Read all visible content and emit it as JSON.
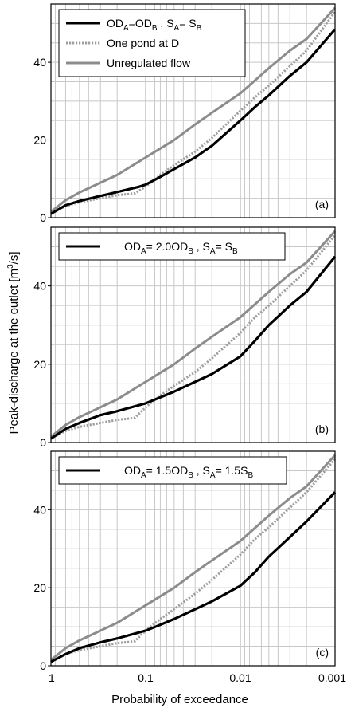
{
  "ylabel": "Peak-discharge at the outlet",
  "ylabel_unit_base": "[m",
  "ylabel_unit_exp": "3",
  "ylabel_unit_tail": "/s]",
  "xlabel": "Probability of exceedance",
  "colors": {
    "od_equal": "#000000",
    "one_pond": "#9e9e9e",
    "unregulated": "#8c8c8c",
    "grid": "#c8c8c8",
    "frame": "#000000"
  },
  "chart_data": [
    {
      "type": "line",
      "panel": "(a)",
      "xlabel": "",
      "ylabel": "",
      "x_scale": "log-reversed",
      "xlim": [
        1,
        0.001
      ],
      "ylim": [
        0,
        55
      ],
      "yticks": [
        "0",
        "20",
        "40"
      ],
      "grid": true,
      "legend_position": "top-left",
      "legend": [
        {
          "parts": [
            "OD",
            "A",
            "=OD",
            "B",
            " , S",
            "A",
            "= S",
            "B"
          ]
        },
        {
          "parts": [
            "One pond at D"
          ]
        },
        {
          "parts": [
            "Unregulated flow"
          ]
        }
      ],
      "series": [
        {
          "name": "OD_A=OD_B , S_A= S_B",
          "style": "solid-black",
          "x": [
            1,
            0.7,
            0.5,
            0.3,
            0.2,
            0.12,
            0.1,
            0.07,
            0.05,
            0.03,
            0.02,
            0.01,
            0.007,
            0.005,
            0.003,
            0.002,
            0.001
          ],
          "y": [
            1,
            3.2,
            4.3,
            5.6,
            6.6,
            7.9,
            8.5,
            10.5,
            12.5,
            15.5,
            18.5,
            25,
            28.5,
            31.5,
            36.5,
            40,
            48.5
          ]
        },
        {
          "name": "One pond at D",
          "style": "dotted-gray",
          "x": [
            1,
            0.7,
            0.5,
            0.3,
            0.2,
            0.15,
            0.13,
            0.1,
            0.07,
            0.05,
            0.03,
            0.02,
            0.01,
            0.007,
            0.005,
            0.003,
            0.002,
            0.001
          ],
          "y": [
            1,
            3,
            4,
            5,
            5.8,
            6.1,
            6.3,
            8,
            11,
            13.5,
            17,
            20.5,
            27.5,
            31,
            34,
            39,
            43,
            53
          ]
        },
        {
          "name": "Unregulated flow",
          "style": "solid-gray",
          "x": [
            1,
            0.7,
            0.5,
            0.3,
            0.2,
            0.1,
            0.05,
            0.03,
            0.02,
            0.01,
            0.005,
            0.003,
            0.002,
            0.001
          ],
          "y": [
            1.5,
            4.5,
            6.5,
            9,
            11,
            15.5,
            20,
            24,
            27,
            32,
            38.5,
            43,
            46,
            54
          ]
        }
      ]
    },
    {
      "type": "line",
      "panel": "(b)",
      "xlabel": "",
      "ylabel": "",
      "x_scale": "log-reversed",
      "xlim": [
        1,
        0.001
      ],
      "ylim": [
        0,
        55
      ],
      "yticks": [
        "0",
        "20",
        "40"
      ],
      "grid": true,
      "legend_position": "top-left",
      "legend": [
        {
          "parts": [
            "OD",
            "A",
            "= 2.0OD",
            "B",
            " , S",
            "A",
            "= S",
            "B"
          ]
        }
      ],
      "series": [
        {
          "name": "OD_A= 2.0OD_B , S_A= S_B",
          "style": "solid-black",
          "x": [
            1,
            0.7,
            0.5,
            0.3,
            0.2,
            0.1,
            0.05,
            0.03,
            0.02,
            0.01,
            0.007,
            0.005,
            0.003,
            0.002,
            0.001
          ],
          "y": [
            1,
            3.5,
            5,
            7,
            8,
            10,
            13,
            15.5,
            17.5,
            22,
            26,
            30,
            35,
            38.5,
            47.5
          ]
        },
        {
          "name": "One pond at D",
          "style": "dotted-gray",
          "x": [
            1,
            0.7,
            0.5,
            0.3,
            0.2,
            0.15,
            0.13,
            0.1,
            0.07,
            0.05,
            0.03,
            0.02,
            0.01,
            0.007,
            0.005,
            0.003,
            0.002,
            0.001
          ],
          "y": [
            1,
            3,
            4,
            5,
            5.8,
            6.1,
            6.3,
            9,
            12,
            14.5,
            18,
            21.5,
            28,
            32,
            35,
            40,
            44,
            53
          ]
        },
        {
          "name": "Unregulated flow",
          "style": "solid-gray",
          "x": [
            1,
            0.7,
            0.5,
            0.3,
            0.2,
            0.1,
            0.05,
            0.03,
            0.02,
            0.01,
            0.005,
            0.003,
            0.002,
            0.001
          ],
          "y": [
            1.5,
            4.5,
            6.5,
            9,
            11,
            15.5,
            20,
            24,
            27,
            32,
            38.5,
            43,
            46,
            54
          ]
        }
      ]
    },
    {
      "type": "line",
      "panel": "(c)",
      "xlabel": "",
      "ylabel": "",
      "x_scale": "log-reversed",
      "xlim": [
        1,
        0.001
      ],
      "ylim": [
        0,
        55
      ],
      "yticks": [
        "0",
        "20",
        "40"
      ],
      "xticks": [
        "1",
        "0.1",
        "0.01",
        "0.001"
      ],
      "grid": true,
      "legend_position": "top-left",
      "legend": [
        {
          "parts": [
            "OD",
            "A",
            "= 1.5OD",
            "B",
            " , S",
            "A",
            "= 1.5S",
            "B"
          ]
        }
      ],
      "series": [
        {
          "name": "OD_A= 1.5OD_B , S_A= 1.5S_B",
          "style": "solid-black",
          "x": [
            1,
            0.7,
            0.5,
            0.3,
            0.2,
            0.1,
            0.07,
            0.05,
            0.03,
            0.02,
            0.01,
            0.007,
            0.005,
            0.003,
            0.002,
            0.001
          ],
          "y": [
            1,
            3,
            4.5,
            6,
            7,
            9,
            10.5,
            12,
            14.5,
            16.5,
            20.5,
            24,
            28,
            33,
            37,
            44.5
          ]
        },
        {
          "name": "One pond at D",
          "style": "dotted-gray",
          "x": [
            1,
            0.7,
            0.5,
            0.3,
            0.2,
            0.15,
            0.13,
            0.1,
            0.07,
            0.05,
            0.03,
            0.02,
            0.01,
            0.007,
            0.005,
            0.003,
            0.002,
            0.001
          ],
          "y": [
            1,
            3,
            4,
            5,
            5.8,
            6.1,
            6.3,
            9,
            12,
            14.5,
            18.5,
            22,
            28.5,
            32.5,
            35.5,
            40.5,
            44.5,
            53
          ]
        },
        {
          "name": "Unregulated flow",
          "style": "solid-gray",
          "x": [
            1,
            0.7,
            0.5,
            0.3,
            0.2,
            0.1,
            0.05,
            0.03,
            0.02,
            0.01,
            0.005,
            0.003,
            0.002,
            0.001
          ],
          "y": [
            1.5,
            4.5,
            6.5,
            9,
            11,
            15.5,
            20,
            24,
            27,
            32,
            38.5,
            43,
            46,
            54
          ]
        }
      ]
    }
  ]
}
